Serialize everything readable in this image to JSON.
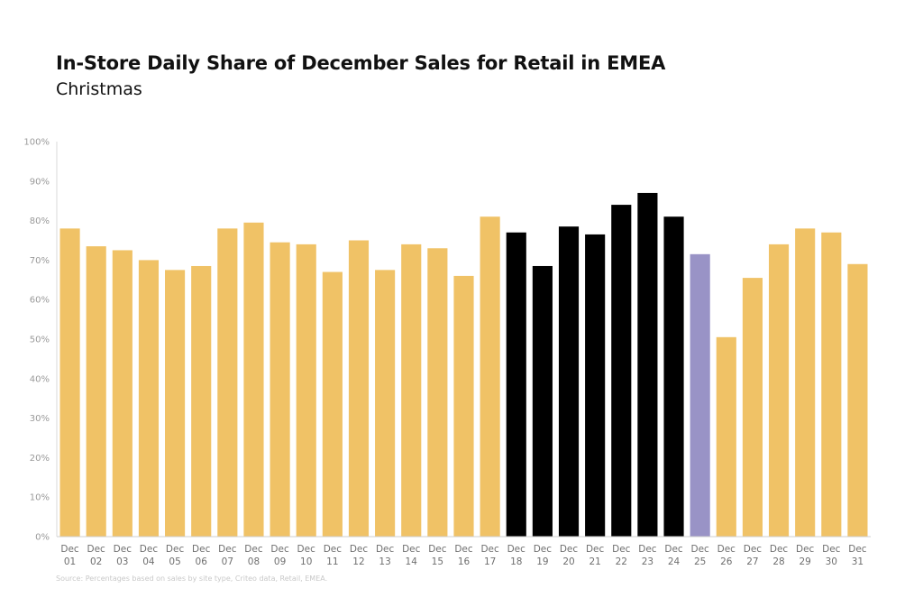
{
  "chart_data": {
    "type": "bar",
    "title": "In-Store Daily Share of December Sales for Retail in EMEA",
    "subtitle": "Christmas",
    "xlabel": "",
    "ylabel": "",
    "ylim": [
      0,
      100
    ],
    "yticks": [
      "0%",
      "10%",
      "20%",
      "30%",
      "40%",
      "50%",
      "60%",
      "70%",
      "80%",
      "90%",
      "100%"
    ],
    "grid": false,
    "categories": [
      [
        "Dec",
        "01"
      ],
      [
        "Dec",
        "02"
      ],
      [
        "Dec",
        "03"
      ],
      [
        "Dec",
        "04"
      ],
      [
        "Dec",
        "05"
      ],
      [
        "Dec",
        "06"
      ],
      [
        "Dec",
        "07"
      ],
      [
        "Dec",
        "08"
      ],
      [
        "Dec",
        "09"
      ],
      [
        "Dec",
        "10"
      ],
      [
        "Dec",
        "11"
      ],
      [
        "Dec",
        "12"
      ],
      [
        "Dec",
        "13"
      ],
      [
        "Dec",
        "14"
      ],
      [
        "Dec",
        "15"
      ],
      [
        "Dec",
        "16"
      ],
      [
        "Dec",
        "17"
      ],
      [
        "Dec",
        "18"
      ],
      [
        "Dec",
        "19"
      ],
      [
        "Dec",
        "20"
      ],
      [
        "Dec",
        "21"
      ],
      [
        "Dec",
        "22"
      ],
      [
        "Dec",
        "23"
      ],
      [
        "Dec",
        "24"
      ],
      [
        "Dec",
        "25"
      ],
      [
        "Dec",
        "26"
      ],
      [
        "Dec",
        "27"
      ],
      [
        "Dec",
        "28"
      ],
      [
        "Dec",
        "29"
      ],
      [
        "Dec",
        "30"
      ],
      [
        "Dec",
        "31"
      ]
    ],
    "values": [
      78,
      73.5,
      72.5,
      70,
      67.5,
      68.5,
      78,
      79.5,
      74.5,
      74,
      67,
      75,
      67.5,
      74,
      73,
      66,
      81,
      77,
      68.5,
      78.5,
      76.5,
      84,
      87,
      81,
      71.5,
      50.5,
      65.5,
      74,
      78,
      77,
      69
    ],
    "bar_colors": [
      "#F0C266",
      "#F0C266",
      "#F0C266",
      "#F0C266",
      "#F0C266",
      "#F0C266",
      "#F0C266",
      "#F0C266",
      "#F0C266",
      "#F0C266",
      "#F0C266",
      "#F0C266",
      "#F0C266",
      "#F0C266",
      "#F0C266",
      "#F0C266",
      "#F0C266",
      "#000000",
      "#000000",
      "#000000",
      "#000000",
      "#000000",
      "#000000",
      "#000000",
      "#9993C6",
      "#F0C266",
      "#F0C266",
      "#F0C266",
      "#F0C266",
      "#F0C266",
      "#F0C266"
    ],
    "source": "Source: Percentages based on sales by site type, Criteo data, Retail, EMEA."
  }
}
